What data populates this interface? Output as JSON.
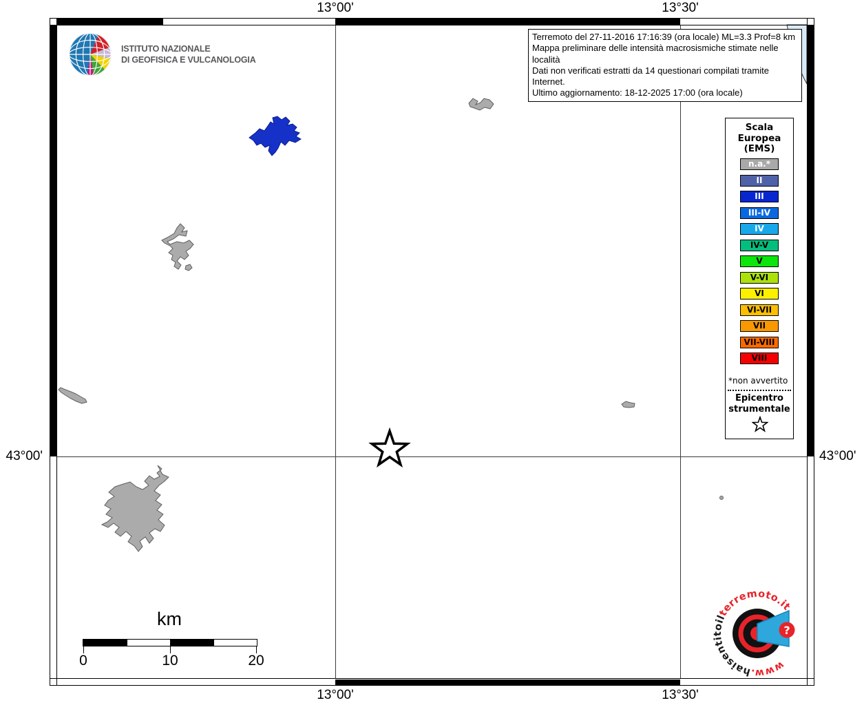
{
  "coords": {
    "top_left": "13°00'",
    "top_right": "13°30'",
    "bottom_left": "13°00'",
    "bottom_right": "13°30'",
    "left": "43°00'",
    "right": "43°00'"
  },
  "info_box": {
    "line1": "Terremoto del 27-11-2016 17:16:39 (ora locale) ML=3.3 Prof=8 km",
    "line2": "Mappa preliminare delle intensità macrosismiche stimate nelle località",
    "line3": "Dati non verificati estratti da 14 questionari compilati tramite Internet.",
    "line4": "Ultimo aggiornamento: 18-12-2025 17:00 (ora locale)"
  },
  "ingv_logo": {
    "line1": "ISTITUTO NAZIONALE",
    "line2": "DI GEOFISICA E VULCANOLOGIA"
  },
  "legend": {
    "title1": "Scala",
    "title2": "Europea",
    "title3": "(EMS)",
    "items": [
      {
        "label": "n.a.*",
        "color": "#A9A9A9",
        "text_color": "#FFFFFF"
      },
      {
        "label": "II",
        "color": "#4F61A8",
        "text_color": "#FFFFFF"
      },
      {
        "label": "III",
        "color": "#0826D0",
        "text_color": "#FFFFFF"
      },
      {
        "label": "III-IV",
        "color": "#0B69E0",
        "text_color": "#FFFFFF"
      },
      {
        "label": "IV",
        "color": "#18A8EA",
        "text_color": "#FFFFFF"
      },
      {
        "label": "IV-V",
        "color": "#04BE7E",
        "text_color": "#000000"
      },
      {
        "label": "V",
        "color": "#0CE50C",
        "text_color": "#000000"
      },
      {
        "label": "V-VI",
        "color": "#ACE20A",
        "text_color": "#000000"
      },
      {
        "label": "VI",
        "color": "#FCF000",
        "text_color": "#000000"
      },
      {
        "label": "VI-VII",
        "color": "#FBBE00",
        "text_color": "#000000"
      },
      {
        "label": "VII",
        "color": "#FA9800",
        "text_color": "#000000"
      },
      {
        "label": "VII-VIII",
        "color": "#F86A00",
        "text_color": "#000000"
      },
      {
        "label": "VIII",
        "color": "#F40000",
        "text_color": "#000000"
      }
    ],
    "footnote": "*non avvertito",
    "epicenter1": "Epicentro",
    "epicenter2": "strumentale"
  },
  "scalebar": {
    "unit": "km",
    "tick0": "0",
    "tick1": "10",
    "tick2": "20"
  },
  "site_logo": {
    "parts": [
      {
        "text": "www.",
        "color": "#E8232A"
      },
      {
        "text": "haisentitoil",
        "color": "#1A1A1A"
      },
      {
        "text": "terremoto.it",
        "color": "#E8232A"
      }
    ],
    "badge": "?"
  },
  "map_colors": {
    "sea": "#D9EAF7",
    "na_locality": "#ABABAB",
    "intensity_iii_locality": "#1631C8",
    "frame_band": "#000000"
  }
}
